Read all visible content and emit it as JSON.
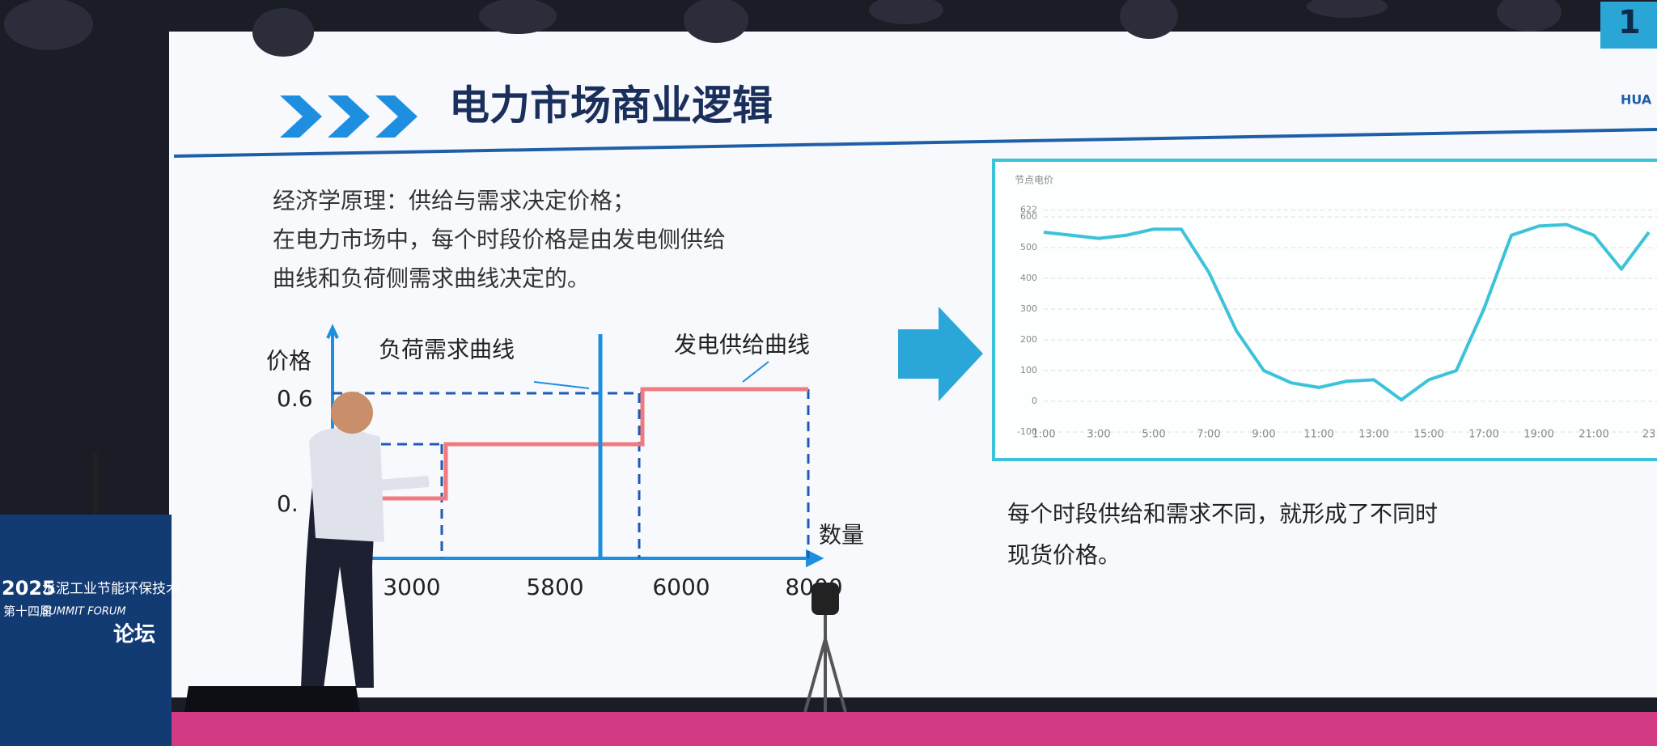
{
  "slide": {
    "page_number": "1",
    "logo": "HUA",
    "title": "电力市场商业逻辑",
    "intro": [
      "经济学原理：供给与需求决定价格；",
      "在电力市场中，每个时段价格是由发电侧供给",
      "曲线和负荷侧需求曲线决定的。"
    ],
    "left_chart": {
      "y_label": "价格",
      "x_label": "数量",
      "demand_label": "负荷需求曲线",
      "supply_label": "发电供给曲线",
      "yticks": [
        "0.6",
        "0."
      ],
      "xticks": [
        "3000",
        "5800",
        "6000",
        "8000"
      ]
    },
    "right_chart": {
      "y_label": "节点电价",
      "yticks": [
        622,
        600,
        500,
        400,
        300,
        200,
        100,
        0,
        -100
      ],
      "xticks": [
        "1:00",
        "3:00",
        "5:00",
        "7:00",
        "9:00",
        "11:00",
        "13:00",
        "15:00",
        "17:00",
        "19:00",
        "21:00",
        "23"
      ],
      "values": [
        550,
        540,
        530,
        540,
        560,
        560,
        420,
        230,
        100,
        60,
        45,
        65,
        70,
        5,
        70,
        100,
        300,
        540,
        570,
        575,
        540,
        430,
        550
      ]
    },
    "caption": [
      "每个时段供给和需求不同，就形成了不同时",
      "现货价格。"
    ]
  },
  "banner": {
    "year": "2025",
    "edition": "第十四届",
    "name": "水泥工业节能环保技术",
    "english": "SUMMIT FORUM",
    "forum": "论坛"
  }
}
